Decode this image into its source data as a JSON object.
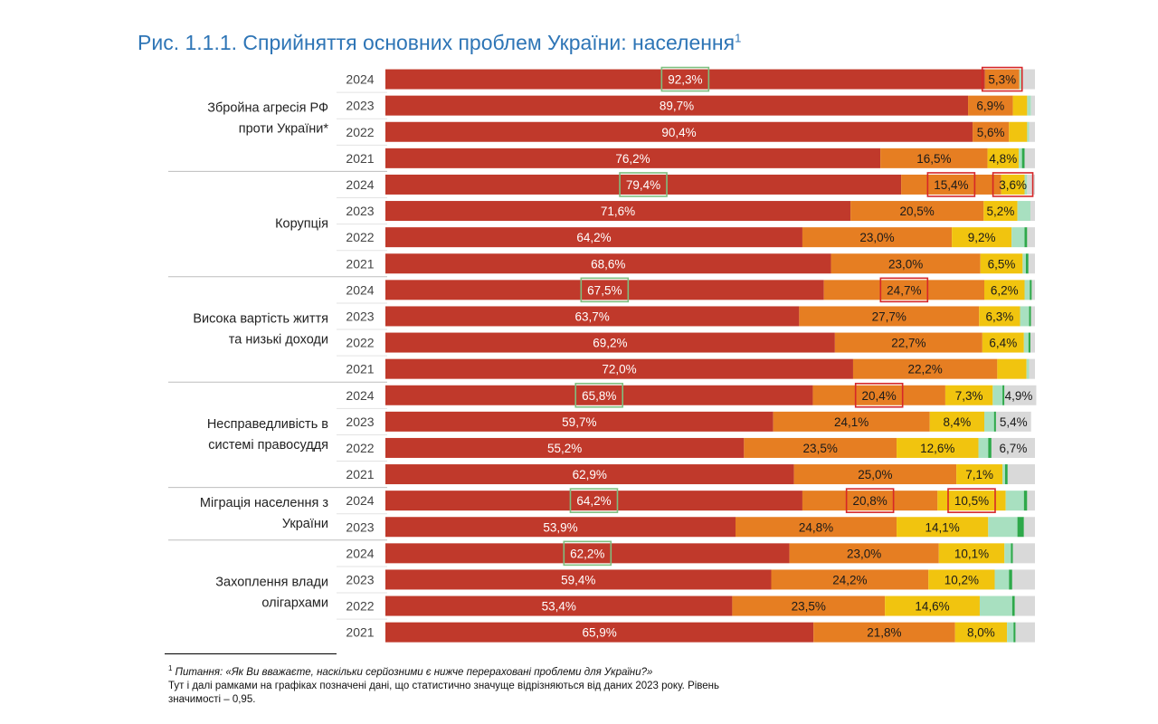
{
  "title": "Рис. 1.1.1. Сприйняття основних проблем України: населення",
  "title_sup": "1",
  "footnote": {
    "mark": "1",
    "question": "Питання: «Як Ви вважаєте, наскільки серйозними є нижче перераховані проблеми для України?»",
    "note": "Тут і далі рамками на графіках позначені дані, що статистично значуще відрізняються від даних 2023 року. Рівень значимості – 0,95."
  },
  "colors": {
    "very_serious": "#c0392b",
    "serious": "#e67e22",
    "somewhat": "#f1c40f",
    "not_serious": "#a8e0c0",
    "not_at_all": "#2ea84a",
    "hard_to_say": "#d9d9d9",
    "box_up": "#7fbf7f",
    "box_down": "#d62728"
  },
  "chart_data": {
    "type": "bar",
    "orientation": "horizontal-stacked-100",
    "title": "Рис. 1.1.1. Сприйняття основних проблем України: населення",
    "xlim": [
      0,
      100
    ],
    "unit": "%",
    "groups": [
      {
        "label": [
          "Збройна агресія РФ",
          "проти України*"
        ],
        "rows": [
          {
            "year": "2024",
            "values": [
              92.3,
              5.3,
              0.0,
              0.5,
              0.0,
              1.9
            ],
            "labels": [
              "92,3%",
              "5,3%",
              "",
              "",
              "",
              ""
            ],
            "boxes": [
              "up",
              "down",
              "",
              "",
              "",
              ""
            ]
          },
          {
            "year": "2023",
            "values": [
              89.7,
              6.9,
              2.2,
              0.6,
              0.0,
              0.6
            ],
            "labels": [
              "89,7%",
              "6,9%",
              "",
              "",
              "",
              ""
            ],
            "boxes": [
              "",
              "",
              "",
              "",
              "",
              ""
            ]
          },
          {
            "year": "2022",
            "values": [
              90.4,
              5.6,
              2.8,
              0.3,
              0.0,
              0.9
            ],
            "labels": [
              "90,4%",
              "5,6%",
              "",
              "",
              "",
              ""
            ],
            "boxes": [
              "",
              "",
              "",
              "",
              "",
              ""
            ]
          },
          {
            "year": "2021",
            "values": [
              76.2,
              16.5,
              4.8,
              0.5,
              0.4,
              1.6
            ],
            "labels": [
              "76,2%",
              "16,5%",
              "4,8%",
              "",
              "",
              ""
            ],
            "boxes": [
              "",
              "",
              "",
              "",
              "",
              ""
            ]
          }
        ]
      },
      {
        "label": [
          "Корупція"
        ],
        "rows": [
          {
            "year": "2024",
            "values": [
              79.4,
              15.4,
              3.6,
              0.4,
              0.0,
              1.2
            ],
            "labels": [
              "79,4%",
              "15,4%",
              "3,6%",
              "",
              "",
              ""
            ],
            "boxes": [
              "up",
              "down",
              "down",
              "",
              "",
              ""
            ]
          },
          {
            "year": "2023",
            "values": [
              71.6,
              20.5,
              5.2,
              2.0,
              0.0,
              0.7
            ],
            "labels": [
              "71,6%",
              "20,5%",
              "5,2%",
              "",
              "",
              ""
            ],
            "boxes": [
              "",
              "",
              "",
              "",
              "",
              ""
            ]
          },
          {
            "year": "2022",
            "values": [
              64.2,
              23.0,
              9.2,
              2.0,
              0.4,
              1.2
            ],
            "labels": [
              "64,2%",
              "23,0%",
              "9,2%",
              "",
              "",
              ""
            ],
            "boxes": [
              "",
              "",
              "",
              "",
              "",
              ""
            ]
          },
          {
            "year": "2021",
            "values": [
              68.6,
              23.0,
              6.5,
              0.5,
              0.4,
              1.0
            ],
            "labels": [
              "68,6%",
              "23,0%",
              "6,5%",
              "",
              "",
              ""
            ],
            "boxes": [
              "",
              "",
              "",
              "",
              "",
              ""
            ]
          }
        ]
      },
      {
        "label": [
          "Висока вартість життя",
          "та низькі доходи"
        ],
        "rows": [
          {
            "year": "2024",
            "values": [
              67.5,
              24.7,
              6.2,
              0.8,
              0.3,
              0.5
            ],
            "labels": [
              "67,5%",
              "24,7%",
              "6,2%",
              "",
              "",
              ""
            ],
            "boxes": [
              "up",
              "down",
              "",
              "",
              "",
              ""
            ]
          },
          {
            "year": "2023",
            "values": [
              63.7,
              27.7,
              6.3,
              1.4,
              0.3,
              0.6
            ],
            "labels": [
              "63,7%",
              "27,7%",
              "6,3%",
              "",
              "",
              ""
            ],
            "boxes": [
              "",
              "",
              "",
              "",
              "",
              ""
            ]
          },
          {
            "year": "2022",
            "values": [
              69.2,
              22.7,
              6.4,
              0.7,
              0.3,
              0.7
            ],
            "labels": [
              "69,2%",
              "22,7%",
              "6,4%",
              "",
              "",
              ""
            ],
            "boxes": [
              "",
              "",
              "",
              "",
              "",
              ""
            ]
          },
          {
            "year": "2021",
            "values": [
              72.0,
              22.2,
              4.5,
              0.4,
              0.0,
              0.9
            ],
            "labels": [
              "72,0%",
              "22,2%",
              "",
              "",
              "",
              ""
            ],
            "boxes": [
              "",
              "",
              "",
              "",
              "",
              ""
            ]
          }
        ]
      },
      {
        "label": [
          "Несправедливість в",
          "системі правосуддя"
        ],
        "rows": [
          {
            "year": "2024",
            "values": [
              65.8,
              20.4,
              7.3,
              1.5,
              0.3,
              4.9
            ],
            "labels": [
              "65,8%",
              "20,4%",
              "7,3%",
              "",
              "",
              "4,9%"
            ],
            "boxes": [
              "up",
              "down",
              "",
              "",
              "",
              ""
            ]
          },
          {
            "year": "2023",
            "values": [
              59.7,
              24.1,
              8.4,
              1.5,
              0.3,
              5.4
            ],
            "labels": [
              "59,7%",
              "24,1%",
              "8,4%",
              "",
              "",
              "5,4%"
            ],
            "boxes": [
              "",
              "",
              "",
              "",
              "",
              ""
            ]
          },
          {
            "year": "2022",
            "values": [
              55.2,
              23.5,
              12.6,
              1.5,
              0.5,
              6.7
            ],
            "labels": [
              "55,2%",
              "23,5%",
              "12,6%",
              "",
              "",
              "6,7%"
            ],
            "boxes": [
              "",
              "",
              "",
              "",
              "",
              ""
            ]
          },
          {
            "year": "2021",
            "values": [
              62.9,
              25.0,
              7.1,
              0.4,
              0.4,
              4.2
            ],
            "labels": [
              "62,9%",
              "25,0%",
              "7,1%",
              "",
              "",
              ""
            ],
            "boxes": [
              "",
              "",
              "",
              "",
              "",
              ""
            ]
          }
        ]
      },
      {
        "label": [
          "Міграція населення з",
          "України"
        ],
        "rows": [
          {
            "year": "2024",
            "values": [
              64.2,
              20.8,
              10.5,
              2.8,
              0.5,
              1.2
            ],
            "labels": [
              "64,2%",
              "20,8%",
              "10,5%",
              "",
              "",
              ""
            ],
            "boxes": [
              "up",
              "down",
              "down",
              "",
              "",
              ""
            ]
          },
          {
            "year": "2023",
            "values": [
              53.9,
              24.8,
              14.1,
              4.5,
              1.0,
              1.7
            ],
            "labels": [
              "53,9%",
              "24,8%",
              "14,1%",
              "",
              "",
              ""
            ],
            "boxes": [
              "",
              "",
              "",
              "",
              "",
              ""
            ]
          }
        ]
      },
      {
        "label": [
          "Захоплення влади",
          "олігархами"
        ],
        "rows": [
          {
            "year": "2024",
            "values": [
              62.2,
              23.0,
              10.1,
              1.0,
              0.3,
              3.4
            ],
            "labels": [
              "62,2%",
              "23,0%",
              "10,1%",
              "",
              "",
              ""
            ],
            "boxes": [
              "up",
              "",
              "",
              "",
              "",
              ""
            ]
          },
          {
            "year": "2023",
            "values": [
              59.4,
              24.2,
              10.2,
              2.2,
              0.5,
              3.5
            ],
            "labels": [
              "59,4%",
              "24,2%",
              "10,2%",
              "",
              "",
              ""
            ],
            "boxes": [
              "",
              "",
              "",
              "",
              "",
              ""
            ]
          },
          {
            "year": "2022",
            "values": [
              53.4,
              23.5,
              14.6,
              5.0,
              0.4,
              3.1
            ],
            "labels": [
              "53,4%",
              "23,5%",
              "14,6%",
              "",
              "",
              ""
            ],
            "boxes": [
              "",
              "",
              "",
              "",
              "",
              ""
            ]
          },
          {
            "year": "2021",
            "values": [
              65.9,
              21.8,
              8.0,
              1.0,
              0.3,
              3.0
            ],
            "labels": [
              "65,9%",
              "21,8%",
              "8,0%",
              "",
              "",
              ""
            ],
            "boxes": [
              "",
              "",
              "",
              "",
              "",
              ""
            ]
          }
        ]
      }
    ]
  }
}
